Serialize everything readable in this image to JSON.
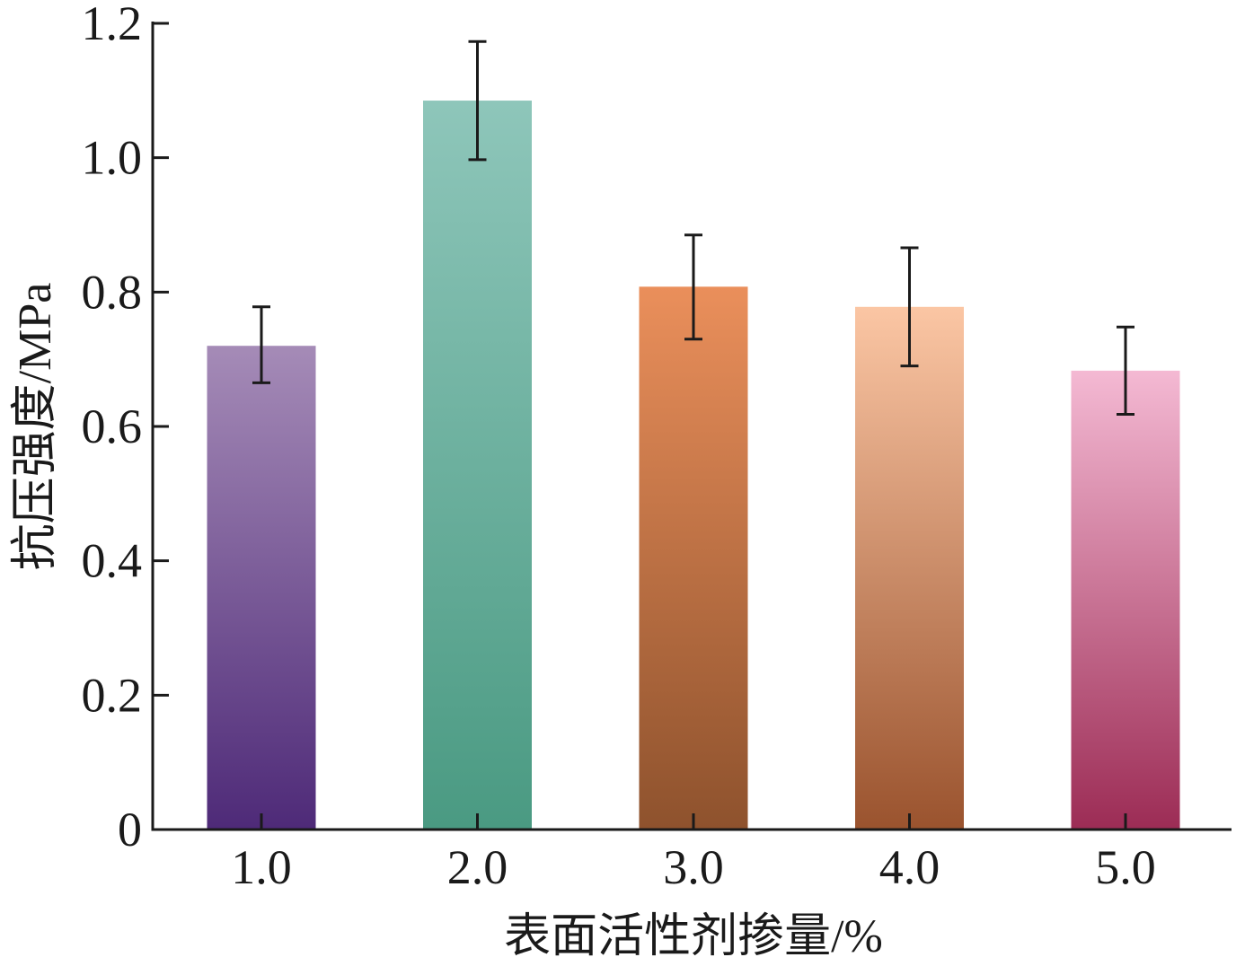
{
  "chart_data": {
    "type": "bar",
    "categories": [
      "1.0",
      "2.0",
      "3.0",
      "4.0",
      "5.0"
    ],
    "values": [
      0.72,
      1.085,
      0.808,
      0.778,
      0.683
    ],
    "error_upper": [
      0.778,
      1.173,
      0.885,
      0.866,
      0.748
    ],
    "error_lower": [
      0.665,
      0.997,
      0.73,
      0.69,
      0.618
    ],
    "xlabel": "表面活性剂掺量/%",
    "ylabel": "抗压强度/MPa",
    "ylim": [
      0,
      1.2
    ],
    "yticks": [
      0,
      0.2,
      0.4,
      0.6,
      0.8,
      1.0,
      1.2
    ],
    "ytick_labels": [
      "0",
      "0.2",
      "0.4",
      "0.6",
      "0.8",
      "1.0",
      "1.2"
    ],
    "grid": false,
    "colors": [
      {
        "top": "#a58bb7",
        "bottom": "#4e2a78"
      },
      {
        "top": "#8ec6ba",
        "bottom": "#4a9a82"
      },
      {
        "top": "#ea8f5b",
        "bottom": "#8e522d"
      },
      {
        "top": "#fbc6a4",
        "bottom": "#9a532e"
      },
      {
        "top": "#f4b9d3",
        "bottom": "#9c2c55"
      }
    ]
  }
}
